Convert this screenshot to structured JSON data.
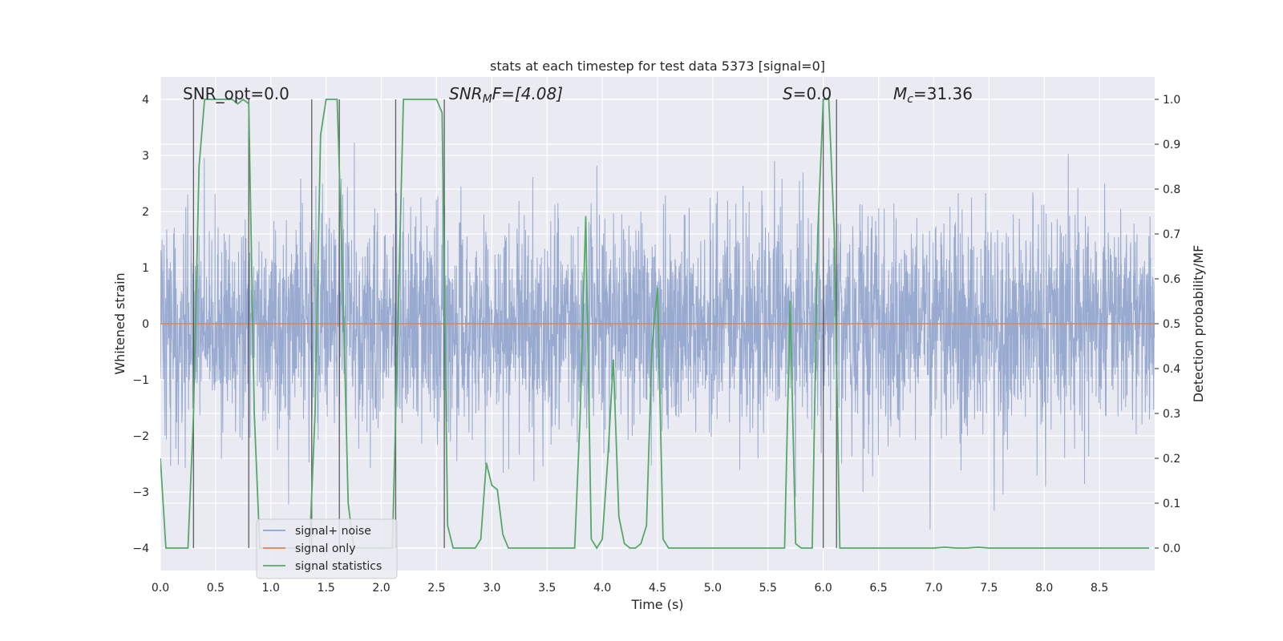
{
  "chart_data": {
    "type": "line",
    "title": "stats at each timestep for test data 5373 [signal=0]",
    "xlabel": "Time (s)",
    "ylabel": "Whitened strain",
    "y2label": "Detection probability/MF",
    "xlim": [
      0,
      9
    ],
    "ylim": [
      -4.4,
      4.4
    ],
    "y2lim": [
      -0.05,
      1.05
    ],
    "xticks": [
      "0.0",
      "0.5",
      "1.0",
      "1.5",
      "2.0",
      "2.5",
      "3.0",
      "3.5",
      "4.0",
      "4.5",
      "5.0",
      "5.5",
      "6.0",
      "6.5",
      "7.0",
      "7.5",
      "8.0",
      "8.5"
    ],
    "yticks": [
      "−4",
      "−3",
      "−2",
      "−1",
      "0",
      "1",
      "2",
      "3",
      "4"
    ],
    "y2ticks": [
      "0.0",
      "0.1",
      "0.2",
      "0.3",
      "0.4",
      "0.5",
      "0.6",
      "0.7",
      "0.8",
      "0.9",
      "1.0"
    ],
    "grid": true,
    "legend_position": "lower-left",
    "annotations": {
      "snr_opt": "SNR_opt=0.0",
      "snr_mf_var": "SNR",
      "snr_mf_sub": "M",
      "snr_mf_rest": "F=[4.08]",
      "s_var": "S",
      "s_rest": "=0.0",
      "mc_var": "M",
      "mc_sub": "c",
      "mc_rest": "=31.36"
    },
    "vlines": [
      0.3,
      0.8,
      1.37,
      1.62,
      2.13,
      2.57,
      6.0,
      6.12
    ],
    "series": [
      {
        "name": "signal+ noise",
        "color": "#8fa3cc",
        "axis": "left",
        "description_values": "noise, std ~0.9, peaks about ±3.5"
      },
      {
        "name": "signal only",
        "color": "#dd8452",
        "axis": "left",
        "x": [
          0,
          9
        ],
        "values": [
          0,
          0
        ]
      },
      {
        "name": "signal statistics",
        "color": "#55a868",
        "axis": "right",
        "x": [
          0.0,
          0.05,
          0.1,
          0.15,
          0.2,
          0.25,
          0.3,
          0.35,
          0.4,
          0.45,
          0.5,
          0.55,
          0.6,
          0.65,
          0.7,
          0.75,
          0.8,
          0.85,
          0.9,
          0.95,
          1.0,
          1.05,
          1.1,
          1.15,
          1.2,
          1.25,
          1.3,
          1.35,
          1.4,
          1.45,
          1.5,
          1.55,
          1.6,
          1.65,
          1.7,
          1.75,
          1.8,
          1.85,
          1.9,
          1.95,
          2.0,
          2.05,
          2.1,
          2.15,
          2.2,
          2.25,
          2.3,
          2.35,
          2.4,
          2.45,
          2.5,
          2.55,
          2.6,
          2.65,
          2.7,
          2.75,
          2.8,
          2.85,
          2.9,
          2.95,
          3.0,
          3.05,
          3.1,
          3.15,
          3.2,
          3.25,
          3.3,
          3.35,
          3.4,
          3.45,
          3.5,
          3.55,
          3.6,
          3.65,
          3.7,
          3.75,
          3.8,
          3.85,
          3.9,
          3.95,
          4.0,
          4.05,
          4.1,
          4.15,
          4.2,
          4.25,
          4.3,
          4.35,
          4.4,
          4.45,
          4.5,
          4.55,
          4.6,
          4.65,
          4.7,
          4.75,
          4.8,
          4.85,
          4.9,
          4.95,
          5.0,
          5.05,
          5.1,
          5.15,
          5.2,
          5.25,
          5.3,
          5.35,
          5.4,
          5.45,
          5.5,
          5.55,
          5.6,
          5.65,
          5.7,
          5.75,
          5.8,
          5.85,
          5.9,
          5.95,
          6.0,
          6.05,
          6.1,
          6.15,
          6.2,
          6.25,
          6.3,
          6.5,
          7.0,
          7.1,
          7.2,
          7.3,
          7.4,
          7.5,
          8.0,
          8.5,
          8.95
        ],
        "values": [
          0.2,
          0.0,
          0.0,
          0.0,
          0.0,
          0.0,
          0.3,
          0.85,
          1.0,
          1.0,
          1.0,
          1.0,
          1.0,
          1.0,
          0.99,
          1.0,
          0.99,
          0.3,
          0.0,
          0.0,
          0.0,
          0.0,
          0.0,
          0.0,
          0.0,
          0.0,
          0.0,
          0.0,
          0.3,
          0.92,
          1.0,
          1.0,
          1.0,
          0.6,
          0.1,
          0.0,
          0.0,
          0.0,
          0.0,
          0.0,
          0.0,
          0.0,
          0.0,
          0.5,
          1.0,
          1.0,
          1.0,
          1.0,
          1.0,
          1.0,
          1.0,
          0.97,
          0.05,
          0.0,
          0.0,
          0.0,
          0.0,
          0.0,
          0.02,
          0.19,
          0.14,
          0.13,
          0.03,
          0.0,
          0.0,
          0.0,
          0.0,
          0.0,
          0.0,
          0.0,
          0.0,
          0.0,
          0.0,
          0.0,
          0.0,
          0.0,
          0.3,
          0.74,
          0.02,
          0.0,
          0.02,
          0.2,
          0.42,
          0.07,
          0.01,
          0.0,
          0.0,
          0.01,
          0.05,
          0.45,
          0.58,
          0.02,
          0.0,
          0.0,
          0.0,
          0.0,
          0.0,
          0.0,
          0.0,
          0.0,
          0.0,
          0.0,
          0.0,
          0.0,
          0.0,
          0.0,
          0.0,
          0.0,
          0.0,
          0.0,
          0.0,
          0.0,
          0.0,
          0.0,
          0.55,
          0.01,
          0.0,
          0.0,
          0.0,
          0.7,
          1.0,
          1.0,
          0.7,
          0.0,
          0.0,
          0.0,
          0.0,
          0.0,
          0.0,
          0.002,
          0.0,
          0.0,
          0.002,
          0.0,
          0.0,
          0.0,
          0.0
        ]
      }
    ]
  }
}
